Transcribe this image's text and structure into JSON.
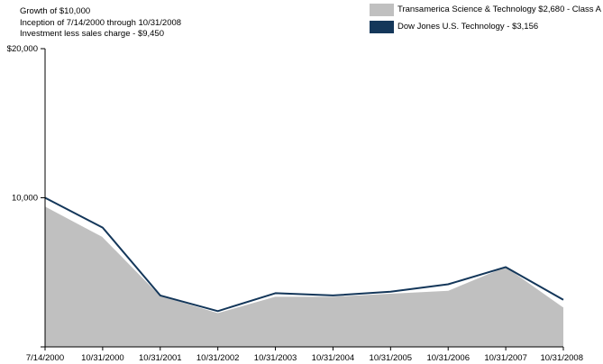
{
  "header": {
    "line1": "Growth of $10,000",
    "line2": "Inception of 7/14/2000 through 10/31/2008",
    "line3": "Investment less sales charge - $9,450"
  },
  "colors": {
    "fund": "#c0c0c0",
    "index": "#14375a"
  },
  "chart_data": {
    "type": "area",
    "title": "",
    "xlabel": "",
    "ylabel": "",
    "ylim": [
      0,
      20000
    ],
    "yticks": [
      {
        "value": 0,
        "label": ""
      },
      {
        "value": 10000,
        "label": "10,000"
      },
      {
        "value": 20000,
        "label": "$20,000"
      }
    ],
    "categories": [
      "7/14/2000",
      "10/31/2000",
      "10/31/2001",
      "10/31/2002",
      "10/31/2003",
      "10/31/2004",
      "10/31/2005",
      "10/31/2006",
      "10/31/2007",
      "10/31/2008"
    ],
    "legend_position": "top-right",
    "grid": false,
    "series": [
      {
        "name": "Transamerica Science & Technology $2,680 - Class A",
        "style": "area",
        "color": "#c0c0c0",
        "values": [
          9450,
          7400,
          3450,
          2300,
          3400,
          3400,
          3600,
          3800,
          5400,
          2680
        ]
      },
      {
        "name": "Dow Jones U.S. Technology - $3,156",
        "style": "line",
        "color": "#14375a",
        "values": [
          10000,
          8000,
          3450,
          2400,
          3600,
          3450,
          3700,
          4200,
          5350,
          3156
        ]
      }
    ]
  }
}
